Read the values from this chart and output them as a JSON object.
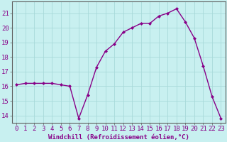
{
  "x": [
    0,
    1,
    2,
    3,
    4,
    5,
    6,
    7,
    8,
    9,
    10,
    11,
    12,
    13,
    14,
    15,
    16,
    17,
    18,
    19,
    20,
    21,
    22,
    23
  ],
  "y": [
    16.1,
    16.2,
    16.2,
    16.2,
    16.2,
    16.1,
    16.0,
    13.8,
    15.4,
    17.3,
    18.4,
    18.9,
    19.7,
    20.0,
    20.3,
    20.3,
    20.8,
    21.0,
    21.3,
    20.4,
    19.3,
    17.4,
    15.3,
    13.8
  ],
  "line_color": "#880088",
  "marker": "D",
  "marker_size": 2.0,
  "bg_color": "#c8f0f0",
  "grid_color": "#a8dada",
  "xlabel": "Windchill (Refroidissement éolien,°C)",
  "xlabel_fontsize": 6.5,
  "xtick_labels": [
    "0",
    "1",
    "2",
    "3",
    "4",
    "5",
    "6",
    "7",
    "8",
    "9",
    "10",
    "11",
    "12",
    "13",
    "14",
    "15",
    "16",
    "17",
    "18",
    "19",
    "20",
    "21",
    "22",
    "23"
  ],
  "ytick_values": [
    14,
    15,
    16,
    17,
    18,
    19,
    20,
    21
  ],
  "ylim": [
    13.5,
    21.8
  ],
  "xlim": [
    -0.5,
    23.5
  ],
  "tick_fontsize": 6.5,
  "line_width": 1.0
}
